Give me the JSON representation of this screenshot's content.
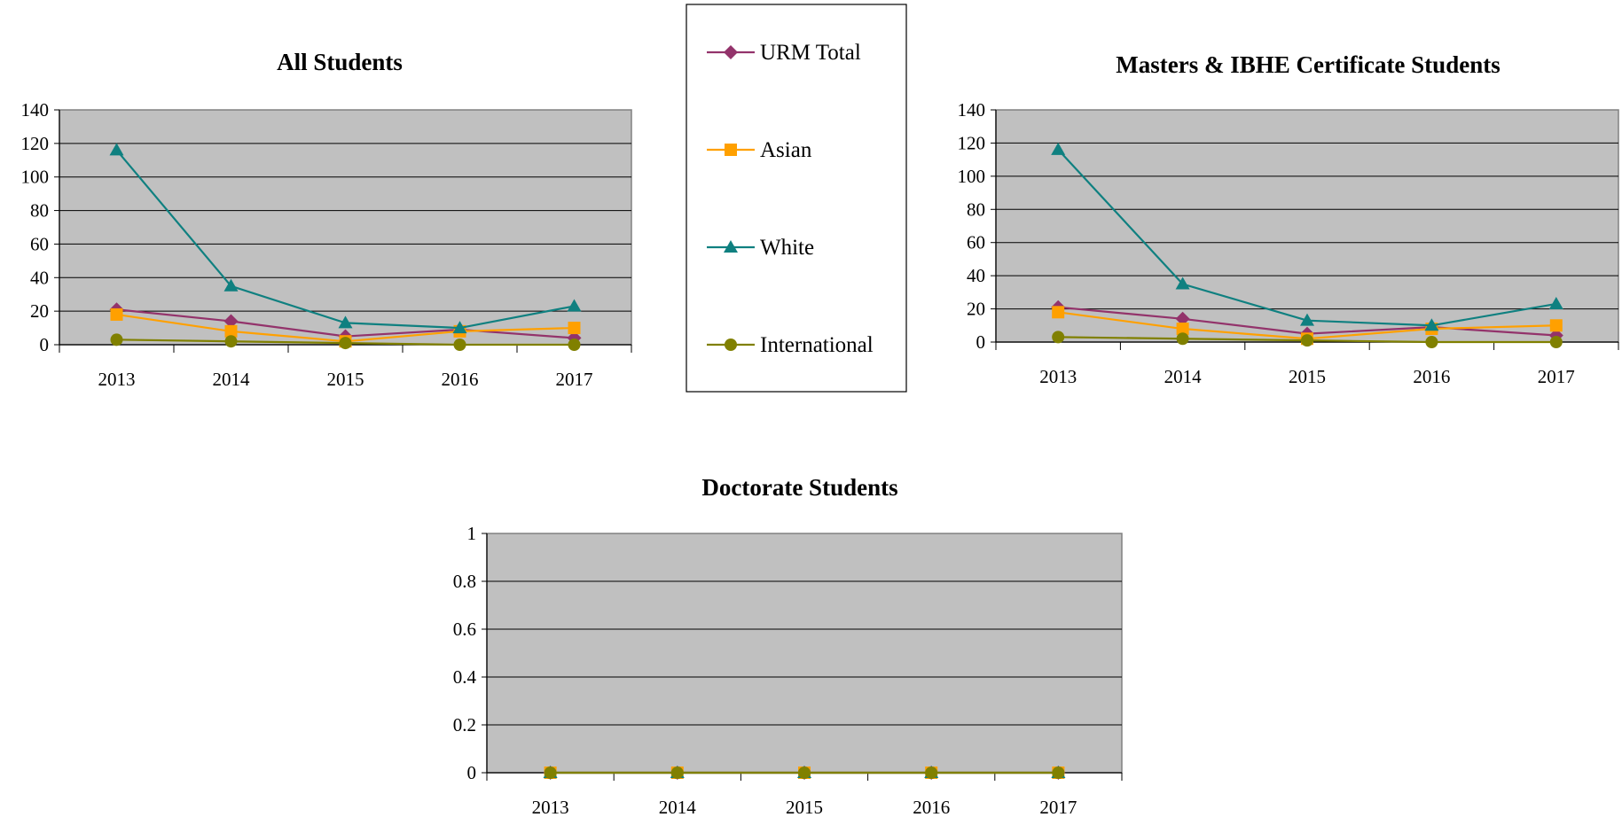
{
  "legend": {
    "items": [
      {
        "label": "URM Total",
        "color": "#93336b",
        "marker": "diamond"
      },
      {
        "label": "Asian",
        "color": "#ffa000",
        "marker": "square"
      },
      {
        "label": "White",
        "color": "#0f8080",
        "marker": "triangle"
      },
      {
        "label": "International",
        "color": "#808000",
        "marker": "circle"
      }
    ]
  },
  "chart_data": [
    {
      "type": "line",
      "title": "All Students",
      "categories": [
        "2013",
        "2014",
        "2015",
        "2016",
        "2017"
      ],
      "ylim": [
        0,
        140
      ],
      "yticks": [
        0,
        20,
        40,
        60,
        80,
        100,
        120,
        140
      ],
      "grid": true,
      "series": [
        {
          "name": "URM Total",
          "values": [
            21,
            14,
            5,
            9,
            4
          ]
        },
        {
          "name": "Asian",
          "values": [
            18,
            8,
            2,
            8,
            10
          ]
        },
        {
          "name": "White",
          "values": [
            116,
            35,
            13,
            10,
            23
          ]
        },
        {
          "name": "International",
          "values": [
            3,
            2,
            1,
            0,
            0
          ]
        }
      ]
    },
    {
      "type": "line",
      "title": "Masters & IBHE Certificate Students",
      "categories": [
        "2013",
        "2014",
        "2015",
        "2016",
        "2017"
      ],
      "ylim": [
        0,
        140
      ],
      "yticks": [
        0,
        20,
        40,
        60,
        80,
        100,
        120,
        140
      ],
      "grid": true,
      "series": [
        {
          "name": "URM Total",
          "values": [
            21,
            14,
            5,
            9,
            4
          ]
        },
        {
          "name": "Asian",
          "values": [
            18,
            8,
            2,
            8,
            10
          ]
        },
        {
          "name": "White",
          "values": [
            116,
            35,
            13,
            10,
            23
          ]
        },
        {
          "name": "International",
          "values": [
            3,
            2,
            1,
            0,
            0
          ]
        }
      ]
    },
    {
      "type": "line",
      "title": "Doctorate Students",
      "categories": [
        "2013",
        "2014",
        "2015",
        "2016",
        "2017"
      ],
      "ylim": [
        0,
        1
      ],
      "yticks": [
        0,
        0.2,
        0.4,
        0.6,
        0.8,
        1
      ],
      "grid": true,
      "series": [
        {
          "name": "URM Total",
          "values": [
            0,
            0,
            0,
            0,
            0
          ]
        },
        {
          "name": "Asian",
          "values": [
            0,
            0,
            0,
            0,
            0
          ]
        },
        {
          "name": "White",
          "values": [
            0,
            0,
            0,
            0,
            0
          ]
        },
        {
          "name": "International",
          "values": [
            0,
            0,
            0,
            0,
            0
          ]
        }
      ]
    }
  ]
}
